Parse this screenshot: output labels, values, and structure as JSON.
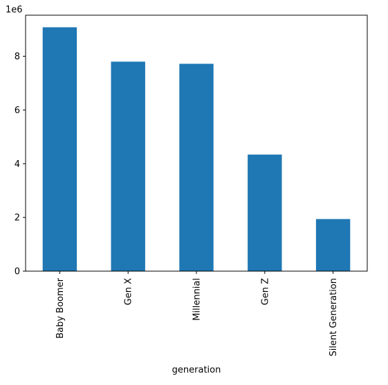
{
  "chart_data": {
    "type": "bar",
    "categories": [
      "Baby Boomer",
      "Gen X",
      "Millennial",
      "Gen Z",
      "Silent Generation"
    ],
    "values": [
      9080000,
      7800000,
      7720000,
      4340000,
      1940000
    ],
    "title": "",
    "xlabel": "generation",
    "ylabel": "",
    "ylim": [
      0,
      9530000
    ],
    "yticks": [
      0,
      2000000,
      4000000,
      6000000,
      8000000
    ],
    "ytick_labels": [
      "0",
      "2",
      "4",
      "6",
      "8"
    ],
    "y_offset_label": "1e6",
    "bar_color": "#1f77b4",
    "grid": false,
    "legend": "none"
  }
}
